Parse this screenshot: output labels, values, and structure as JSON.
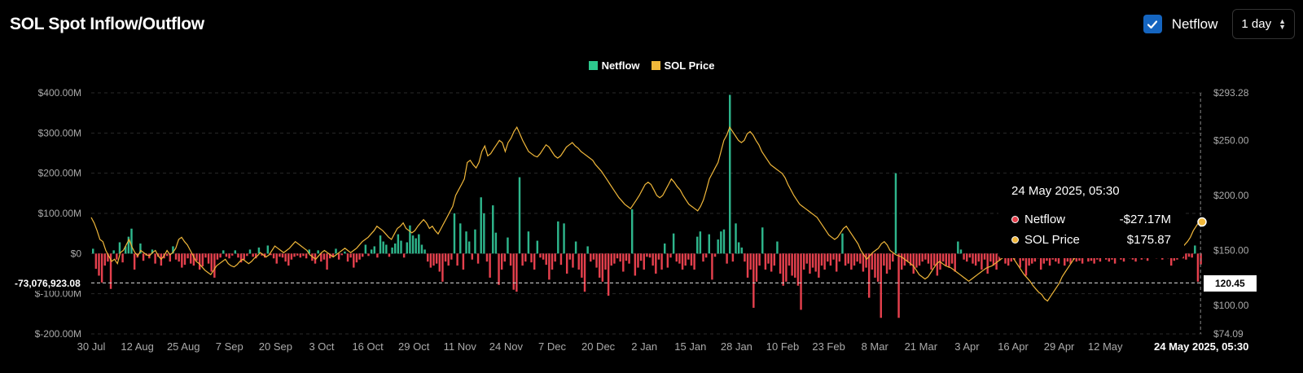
{
  "header": {
    "title": "SOL Spot Inflow/Outflow"
  },
  "controls": {
    "netflow_label": "Netflow",
    "netflow_checked": true,
    "interval": "1 day"
  },
  "legend": [
    {
      "label": "Netflow",
      "color": "#2dc98e"
    },
    {
      "label": "SOL Price",
      "color": "#f0b73a"
    }
  ],
  "crosshair": {
    "left_value": "-73,076,923.08",
    "right_value": "120.45",
    "date": "24 May 2025, 05:30"
  },
  "tooltip": {
    "date": "24 May 2025, 05:30",
    "rows": [
      {
        "label": "Netflow",
        "value": "-$27.17M",
        "color": "#e5404d"
      },
      {
        "label": "SOL Price",
        "value": "$175.87",
        "color": "#f0b73a"
      }
    ]
  },
  "colors": {
    "inflow": "#2eb68c",
    "outflow": "#e5404d",
    "price": "#f0b73a",
    "grid": "#2a2a2a",
    "axis_text": "#aaaaaa"
  },
  "chart_data": {
    "type": "bar",
    "title": "SOL Spot Inflow/Outflow",
    "left_axis": {
      "ticks": [
        "$400.00M",
        "$300.00M",
        "$200.00M",
        "$100.00M",
        "$0",
        "$-100.00M",
        "$-200.00M"
      ],
      "range": [
        -200,
        400
      ],
      "unit": "M USD"
    },
    "right_axis": {
      "ticks": [
        "$293.28",
        "$250.00",
        "$200.00",
        "$150.00",
        "$100.00",
        "$74.09"
      ],
      "range": [
        74.09,
        293.28
      ]
    },
    "x_ticks": [
      "30 Jul",
      "12 Aug",
      "25 Aug",
      "7 Sep",
      "20 Sep",
      "3 Oct",
      "16 Oct",
      "29 Oct",
      "11 Nov",
      "24 Nov",
      "7 Dec",
      "20 Dec",
      "2 Jan",
      "15 Jan",
      "28 Jan",
      "10 Feb",
      "23 Feb",
      "8 Mar",
      "21 Mar",
      "3 Apr",
      "16 Apr",
      "29 Apr",
      "12 May"
    ],
    "x_start": "2024-07-30",
    "series": [
      {
        "name": "Netflow",
        "type": "bar",
        "values": [
          12,
          -38,
          -55,
          -72,
          -30,
          -20,
          -88,
          8,
          -15,
          28,
          -22,
          18,
          42,
          62,
          -40,
          -10,
          25,
          -18,
          -5,
          -12,
          10,
          -25,
          -8,
          -30,
          -12,
          -6,
          -20,
          18,
          -15,
          -20,
          -35,
          -28,
          -12,
          -25,
          -30,
          -18,
          -40,
          -32,
          -10,
          -25,
          -45,
          -60,
          -15,
          -10,
          8,
          -8,
          -12,
          -5,
          8,
          -10,
          -22,
          -15,
          -6,
          10,
          -8,
          -12,
          15,
          -5,
          -10,
          20,
          -4,
          -12,
          -25,
          -8,
          -10,
          -20,
          -30,
          -15,
          -8,
          -5,
          -10,
          -6,
          -12,
          10,
          -18,
          -25,
          8,
          -20,
          -15,
          -40,
          -12,
          -8,
          12,
          -15,
          -4,
          5,
          -20,
          -10,
          -35,
          -22,
          -15,
          -8,
          22,
          -6,
          10,
          18,
          -10,
          45,
          30,
          22,
          -8,
          15,
          25,
          48,
          32,
          -10,
          28,
          70,
          45,
          38,
          48,
          22,
          10,
          -20,
          -35,
          -30,
          -25,
          -45,
          -70,
          -20,
          -30,
          -15,
          100,
          -30,
          75,
          -40,
          55,
          30,
          -15,
          60,
          -25,
          140,
          100,
          -20,
          -60,
          120,
          52,
          -78,
          -40,
          -20,
          40,
          -30,
          -90,
          -95,
          190,
          -30,
          -20,
          55,
          -22,
          -40,
          32,
          -10,
          -15,
          -28,
          -65,
          -40,
          -20,
          80,
          -28,
          75,
          -50,
          -15,
          -35,
          30,
          -40,
          -60,
          -95,
          18,
          -20,
          -15,
          -35,
          -60,
          -70,
          -40,
          -105,
          -30,
          -25,
          -12,
          -20,
          -45,
          -18,
          -25,
          110,
          -55,
          -35,
          -18,
          -40,
          -8,
          -10,
          -30,
          -50,
          -15,
          -40,
          25,
          -35,
          -10,
          50,
          -20,
          -25,
          -40,
          -30,
          -15,
          -30,
          -40,
          42,
          55,
          -20,
          -10,
          48,
          -65,
          -8,
          35,
          55,
          60,
          -25,
          395,
          -20,
          75,
          28,
          15,
          -20,
          -60,
          -40,
          -135,
          -70,
          -30,
          65,
          -40,
          -25,
          -45,
          -30,
          30,
          -50,
          -80,
          -70,
          -30,
          -55,
          -60,
          -80,
          -140,
          -40,
          -25,
          -50,
          -35,
          -45,
          -60,
          -30,
          -40,
          -20,
          -30,
          -15,
          -45,
          -20,
          50,
          -30,
          -25,
          -40,
          -30,
          -20,
          -25,
          -45,
          -35,
          -110,
          -40,
          -60,
          -70,
          -160,
          -30,
          -50,
          -40,
          -20,
          200,
          -160,
          -40,
          -30,
          -20,
          -30,
          -50,
          -35,
          -30,
          -20,
          -15,
          -25,
          -40,
          -30,
          -55,
          -40,
          -20,
          -30,
          -35,
          -25,
          -45,
          30,
          10,
          -15,
          -20,
          -10,
          -25,
          -30,
          -20,
          -40,
          -15,
          -50,
          -20,
          -30,
          -40,
          -18,
          -10,
          -25,
          -30,
          -20,
          -15,
          -10,
          -35,
          -18,
          -55,
          -30,
          -25,
          -20,
          -12,
          -40,
          -25,
          -18,
          -30,
          -15,
          -20,
          -25,
          -10,
          -30,
          -20,
          -25,
          -15,
          -20,
          -18,
          -25,
          -10,
          -20,
          -18,
          -25,
          -15,
          -20,
          -10,
          -15,
          -20,
          -15,
          -25,
          -10,
          -15,
          -20,
          -10,
          -12,
          -15,
          -20,
          -10,
          -15,
          -12,
          -18,
          -10,
          -8,
          -12,
          -10,
          -15,
          -8,
          -12,
          -30,
          -18,
          -15,
          -10,
          -12,
          -15,
          -8,
          -10,
          20,
          -70,
          -27.17
        ]
      },
      {
        "name": "SOL Price",
        "type": "line",
        "values": [
          180,
          175,
          168,
          160,
          158,
          150,
          145,
          140,
          142,
          138,
          148,
          150,
          155,
          160,
          153,
          148,
          145,
          150,
          148,
          146,
          145,
          148,
          150,
          145,
          142,
          145,
          150,
          146,
          148,
          152,
          160,
          162,
          158,
          155,
          150,
          145,
          140,
          138,
          135,
          132,
          130,
          128,
          132,
          136,
          138,
          140,
          142,
          138,
          136,
          135,
          137,
          140,
          142,
          140,
          138,
          140,
          143,
          145,
          148,
          146,
          144,
          146,
          150,
          154,
          152,
          150,
          148,
          150,
          152,
          155,
          158,
          156,
          154,
          152,
          150,
          146,
          144,
          142,
          145,
          148,
          150,
          148,
          146,
          144,
          146,
          148,
          150,
          152,
          150,
          148,
          150,
          152,
          155,
          158,
          160,
          162,
          165,
          168,
          172,
          170,
          168,
          165,
          162,
          160,
          165,
          170,
          172,
          175,
          170,
          168,
          166,
          168,
          172,
          175,
          178,
          175,
          170,
          172,
          168,
          165,
          170,
          175,
          180,
          185,
          190,
          200,
          205,
          210,
          215,
          230,
          232,
          228,
          225,
          230,
          240,
          245,
          236,
          238,
          242,
          246,
          250,
          248,
          240,
          248,
          252,
          258,
          262,
          256,
          250,
          245,
          240,
          238,
          236,
          235,
          238,
          242,
          246,
          244,
          240,
          236,
          234,
          236,
          240,
          244,
          246,
          248,
          245,
          243,
          240,
          238,
          236,
          234,
          232,
          228,
          225,
          222,
          218,
          214,
          210,
          206,
          202,
          198,
          195,
          192,
          190,
          188,
          192,
          196,
          200,
          205,
          210,
          212,
          210,
          205,
          200,
          198,
          200,
          205,
          210,
          215,
          212,
          208,
          205,
          200,
          196,
          192,
          190,
          188,
          186,
          190,
          196,
          205,
          215,
          220,
          225,
          230,
          240,
          250,
          255,
          262,
          258,
          254,
          250,
          248,
          250,
          256,
          258,
          255,
          250,
          246,
          240,
          236,
          232,
          228,
          226,
          224,
          222,
          220,
          216,
          210,
          205,
          200,
          196,
          192,
          190,
          188,
          186,
          184,
          182,
          180,
          176,
          172,
          168,
          164,
          162,
          160,
          162,
          166,
          170,
          172,
          168,
          164,
          160,
          156,
          150,
          146,
          142,
          145,
          148,
          150,
          152,
          156,
          158,
          155,
          150,
          148,
          146,
          145,
          144,
          142,
          140,
          138,
          136,
          132,
          128,
          126,
          124,
          126,
          130,
          134,
          138,
          140,
          138,
          136,
          135,
          134,
          132,
          130,
          128,
          126,
          124,
          122,
          124,
          126,
          128,
          130,
          132,
          134,
          135,
          136,
          138,
          140,
          142,
          144,
          146,
          148,
          144,
          140,
          136,
          132,
          128,
          125,
          122,
          118,
          115,
          112,
          110,
          106,
          104,
          108,
          112,
          116,
          120,
          126,
          130,
          134,
          138,
          142,
          145,
          146,
          148,
          148,
          147,
          146,
          145,
          144,
          145,
          146,
          147,
          148,
          148,
          147,
          146,
          145,
          146,
          147,
          148,
          149,
          150,
          150,
          150,
          149,
          148,
          147,
          146,
          146,
          145,
          145,
          144,
          145,
          146,
          147,
          148,
          150,
          152,
          155,
          158,
          162,
          168,
          172,
          176,
          175.87
        ]
      }
    ],
    "crosshair_date": "2025-05-24"
  }
}
